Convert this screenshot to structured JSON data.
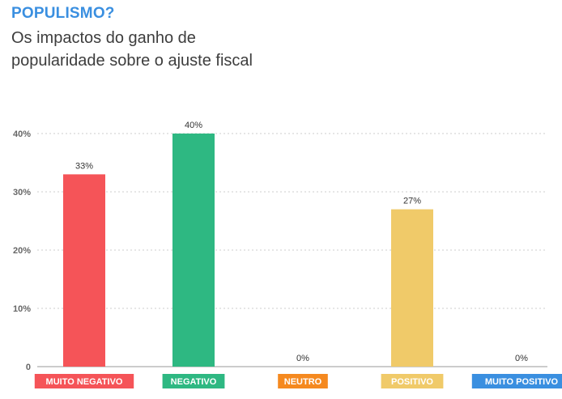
{
  "header": {
    "kicker": "POPULISMO?",
    "title": "Os impactos do ganho de popularidade sobre o ajuste fiscal"
  },
  "chart_data": {
    "type": "bar",
    "categories": [
      "MUITO NEGATIVO",
      "NEGATIVO",
      "NEUTRO",
      "POSITIVO",
      "MUITO POSITIVO"
    ],
    "values": [
      33,
      40,
      0,
      27,
      0
    ],
    "data_labels": [
      "33%",
      "40%",
      "0%",
      "27%",
      "0%"
    ],
    "colors": [
      "#f55458",
      "#2eb882",
      "#f5891f",
      "#f0ca69",
      "#3a8fe0"
    ],
    "yticks": [
      {
        "value": 0,
        "label": "0"
      },
      {
        "value": 10,
        "label": "10%"
      },
      {
        "value": 20,
        "label": "20%"
      },
      {
        "value": 30,
        "label": "30%"
      },
      {
        "value": 40,
        "label": "40%"
      }
    ],
    "ylim": [
      0,
      40
    ],
    "grid": true,
    "xlabel": "",
    "ylabel": ""
  }
}
